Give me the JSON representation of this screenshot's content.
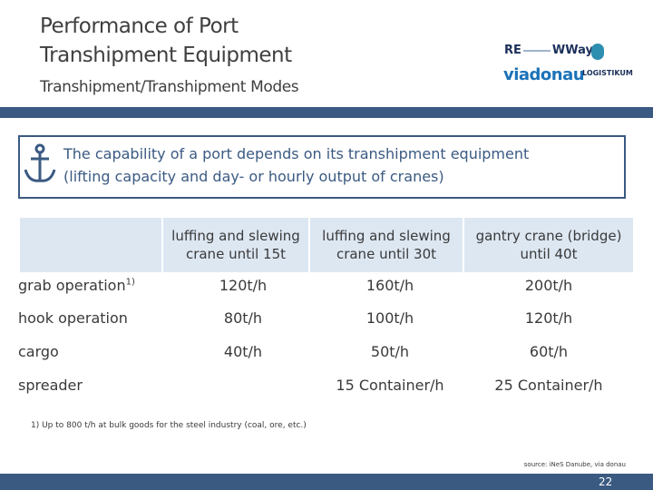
{
  "header": {
    "title_lines": [
      "Performance of Port",
      "Transhipment Equipment"
    ],
    "subtitle": "Transhipment/Transhipment Modes",
    "logos": [
      "RE",
      "WWay",
      "viadonau",
      "LOGISTIKUM"
    ]
  },
  "callout": {
    "lines": [
      "The capability of a port depends on its transhipment equipment",
      "(lifting capacity and day- or hourly output of cranes)"
    ]
  },
  "table": {
    "columns": [
      "luffing and slewing crane until 15t",
      "luffing and slewing crane until 30t",
      "gantry crane (bridge) until 40t"
    ],
    "rows": [
      {
        "label": "grab operation",
        "note": "1)",
        "cells": [
          "120t/h",
          "160t/h",
          "200t/h"
        ]
      },
      {
        "label": "hook operation",
        "cells": [
          "80t/h",
          "100t/h",
          "120t/h"
        ]
      },
      {
        "label": "cargo",
        "cells": [
          "40t/h",
          "50t/h",
          "60t/h"
        ]
      },
      {
        "label": "spreader",
        "cells": [
          null,
          "15 Container/h",
          "25 Container/h"
        ]
      }
    ]
  },
  "footnote": "1) Up to 800 t/h at bulk goods for the steel industry (coal, ore, etc.)",
  "source": "source: iNeS Danube, via donau",
  "page_number": 22
}
